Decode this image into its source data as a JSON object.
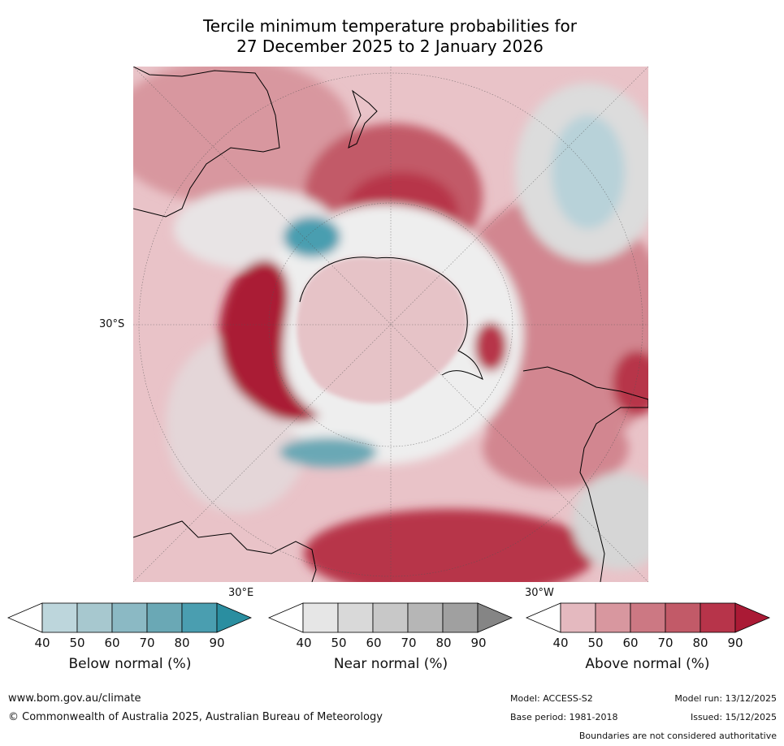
{
  "title": {
    "line1": "Tercile minimum temperature probabilities for",
    "line2": "27 December 2025 to 2 January 2026"
  },
  "map": {
    "lat_label": "30°S",
    "lon_label_east": "30°E",
    "lon_label_west": "30°W"
  },
  "legends": [
    {
      "label": "Below normal (%)",
      "ticks": [
        "40",
        "50",
        "60",
        "70",
        "80",
        "90"
      ],
      "colors": [
        "#ffffff",
        "#bdd6dc",
        "#a7c8cf",
        "#8bb9c4",
        "#6aa8b5",
        "#4a9eb0",
        "#2a8ea0"
      ]
    },
    {
      "label": "Near normal (%)",
      "ticks": [
        "40",
        "50",
        "60",
        "70",
        "80",
        "90"
      ],
      "colors": [
        "#ffffff",
        "#e6e6e6",
        "#d9d9d9",
        "#c8c8c8",
        "#b6b6b6",
        "#a0a0a0",
        "#858585"
      ]
    },
    {
      "label": "Above normal (%)",
      "ticks": [
        "40",
        "50",
        "60",
        "70",
        "80",
        "90"
      ],
      "colors": [
        "#ffffff",
        "#e4b9bf",
        "#d8979f",
        "#cc7883",
        "#c25a68",
        "#b7344a",
        "#aa1a35"
      ]
    }
  ],
  "footer": {
    "website": "www.bom.gov.au/climate",
    "copyright": "© Commonwealth of Australia 2025, Australian Bureau of Meteorology",
    "model": "Model: ACCESS-S2",
    "base_period": "Base period: 1981-2018",
    "model_run": "Model run: 13/12/2025",
    "issued": "Issued: 15/12/2025",
    "disclaimer": "Boundaries are not considered authoritative"
  }
}
